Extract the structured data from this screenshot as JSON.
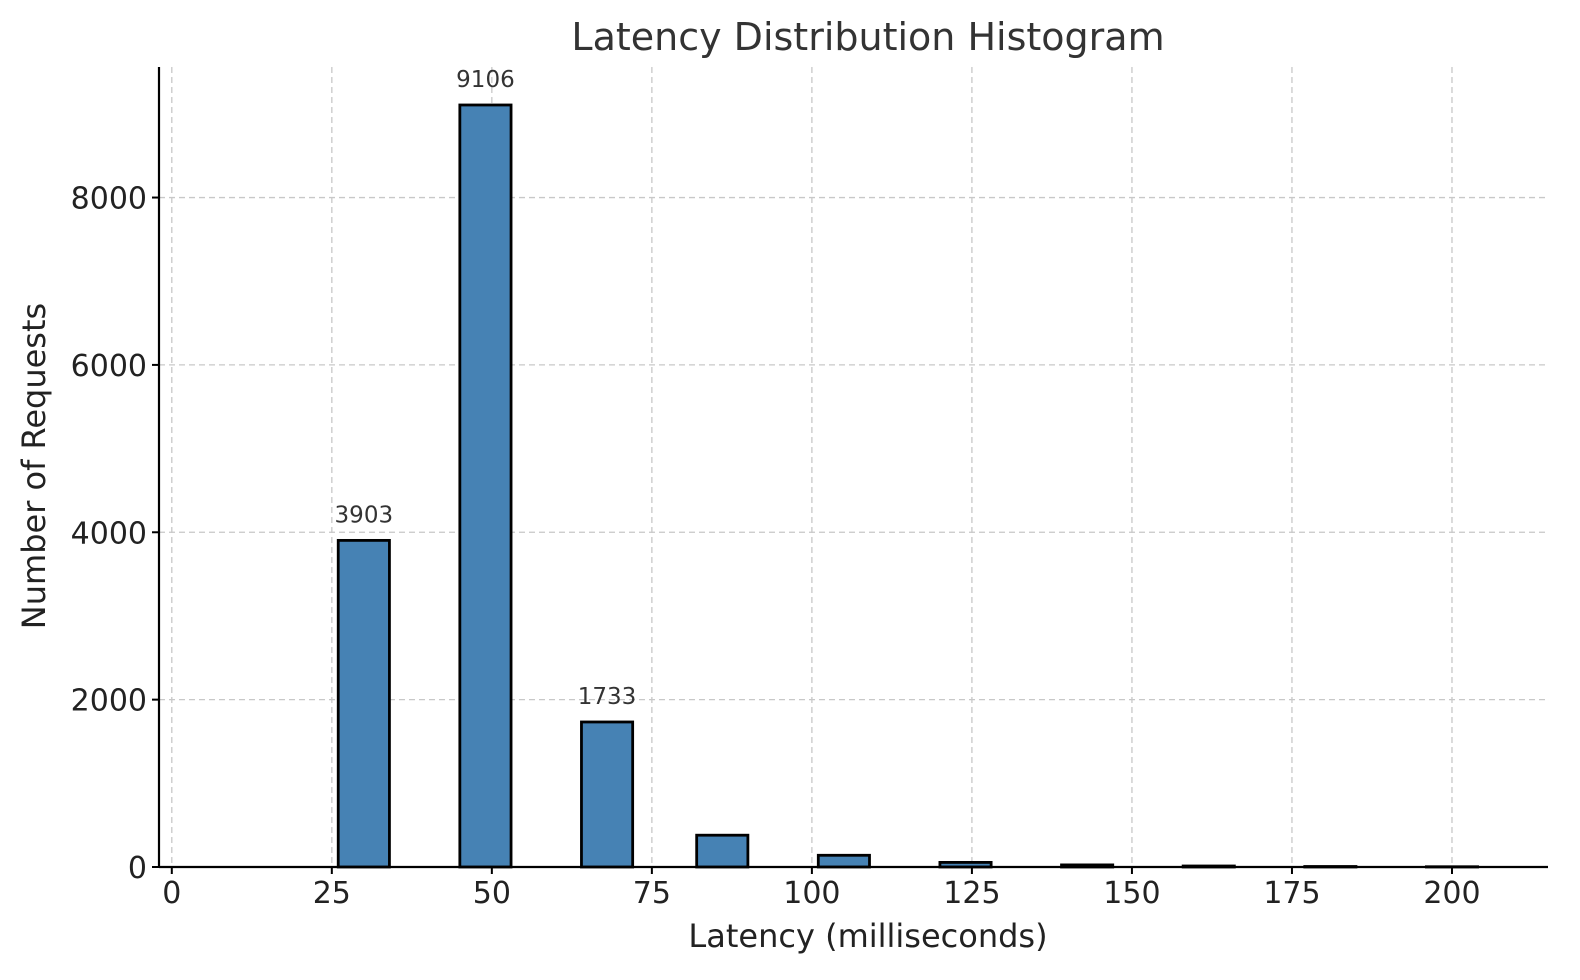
{
  "chart_data": {
    "type": "bar",
    "title": "Latency Distribution Histogram",
    "xlabel": "Latency (milliseconds)",
    "ylabel": "Number of Requests",
    "xlim": [
      -2,
      215
    ],
    "ylim": [
      0,
      9560
    ],
    "x_ticks": [
      0,
      25,
      50,
      75,
      100,
      125,
      150,
      175,
      200
    ],
    "y_ticks": [
      0,
      2000,
      4000,
      6000,
      8000
    ],
    "grid": true,
    "bar_color": "#4682B4",
    "bins": [
      {
        "start": 7,
        "end": 15,
        "count": 0
      },
      {
        "start": 26,
        "end": 34,
        "count": 3903,
        "label": "3903"
      },
      {
        "start": 45,
        "end": 53,
        "count": 9106,
        "label": "9106"
      },
      {
        "start": 64,
        "end": 72,
        "count": 1733,
        "label": "1733"
      },
      {
        "start": 82,
        "end": 90,
        "count": 380
      },
      {
        "start": 101,
        "end": 109,
        "count": 140
      },
      {
        "start": 120,
        "end": 128,
        "count": 55
      },
      {
        "start": 139,
        "end": 147,
        "count": 25
      },
      {
        "start": 158,
        "end": 166,
        "count": 12
      },
      {
        "start": 177,
        "end": 185,
        "count": 6
      },
      {
        "start": 196,
        "end": 204,
        "count": 3
      }
    ]
  }
}
